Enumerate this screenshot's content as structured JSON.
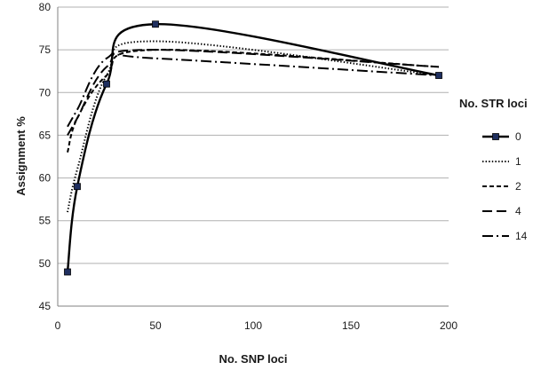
{
  "chart_data": {
    "type": "line",
    "title": "",
    "xlabel": "No. SNP loci",
    "ylabel": "Assignment %",
    "xlim": [
      0,
      200
    ],
    "ylim": [
      45,
      80
    ],
    "xticks": [
      0,
      50,
      100,
      150,
      200
    ],
    "yticks": [
      45,
      50,
      55,
      60,
      65,
      70,
      75,
      80
    ],
    "grid": "horizontal",
    "legend_title": "No. STR loci",
    "legend_position": "right",
    "series": [
      {
        "name": "0",
        "style": "solid-markers",
        "x": [
          5,
          10,
          25,
          50,
          195
        ],
        "y": [
          49,
          59,
          71,
          78,
          72
        ]
      },
      {
        "name": "1",
        "style": "dotted",
        "x": [
          5,
          10,
          25,
          50,
          195
        ],
        "y": [
          56,
          61,
          72,
          76,
          72
        ]
      },
      {
        "name": "2",
        "style": "short-dash",
        "x": [
          5,
          10,
          25,
          50,
          195
        ],
        "y": [
          63,
          67,
          72,
          75,
          73
        ]
      },
      {
        "name": "4",
        "style": "long-dash",
        "x": [
          5,
          10,
          25,
          50,
          195
        ],
        "y": [
          65,
          67,
          73,
          75,
          73
        ]
      },
      {
        "name": "14",
        "style": "dash-dot",
        "x": [
          5,
          10,
          25,
          50,
          195
        ],
        "y": [
          66,
          68,
          74,
          74,
          72
        ]
      }
    ]
  }
}
